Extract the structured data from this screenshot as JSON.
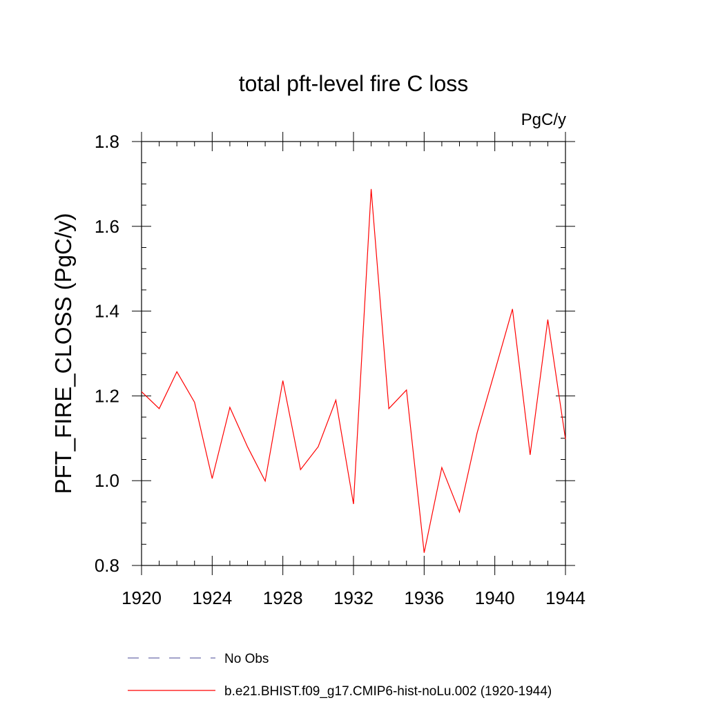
{
  "chart_data": {
    "type": "line",
    "title": "total pft-level fire C loss",
    "units_label": "PgC/y",
    "ylabel": "PFT_FIRE_CLOSS  (PgC/y)",
    "xlabel": "",
    "xlim": [
      1920,
      1944
    ],
    "ylim": [
      0.8,
      1.8
    ],
    "x_ticks": [
      1920,
      1924,
      1928,
      1932,
      1936,
      1940,
      1944
    ],
    "y_ticks": [
      0.8,
      1.0,
      1.2,
      1.4,
      1.6,
      1.8
    ],
    "grid": false,
    "legend_position": "bottom",
    "series": [
      {
        "name": "b.e21.BHIST.f09_g17.CMIP6-hist-noLu.002 (1920-1944)",
        "color": "#ff0000",
        "style": "solid",
        "x": [
          1920,
          1921,
          1922,
          1923,
          1924,
          1925,
          1926,
          1927,
          1928,
          1929,
          1930,
          1931,
          1932,
          1933,
          1934,
          1935,
          1936,
          1937,
          1938,
          1939,
          1940,
          1941,
          1942,
          1943,
          1944
        ],
        "values": [
          1.21,
          1.17,
          1.257,
          1.185,
          1.005,
          1.173,
          1.08,
          0.999,
          1.236,
          1.026,
          1.08,
          1.19,
          0.945,
          1.688,
          1.17,
          1.214,
          0.83,
          1.031,
          0.926,
          1.113,
          1.258,
          1.405,
          1.061,
          1.38,
          1.098
        ]
      }
    ],
    "legend": [
      {
        "label": "No Obs",
        "color": "#6a6aaa",
        "style": "dashed"
      },
      {
        "label": "b.e21.BHIST.f09_g17.CMIP6-hist-noLu.002 (1920-1944)",
        "color": "#ff0000",
        "style": "solid"
      }
    ]
  }
}
